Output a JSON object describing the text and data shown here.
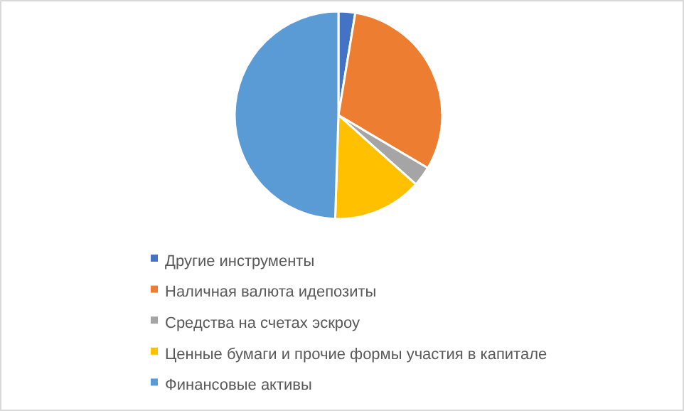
{
  "chart_data": {
    "type": "pie",
    "categories": [
      "Другие инструменты",
      "Наличная валюта идепозиты",
      "Средства на счетах эскроу",
      "Ценные бумаги и прочие формы участия в капитале",
      "Финансовые активы"
    ],
    "values": [
      2.6,
      30.9,
      3.1,
      13.9,
      49.5
    ],
    "colors": [
      "#4472c4",
      "#ed7d31",
      "#a5a5a5",
      "#ffc000",
      "#5b9bd5"
    ],
    "legend": "bottom"
  }
}
